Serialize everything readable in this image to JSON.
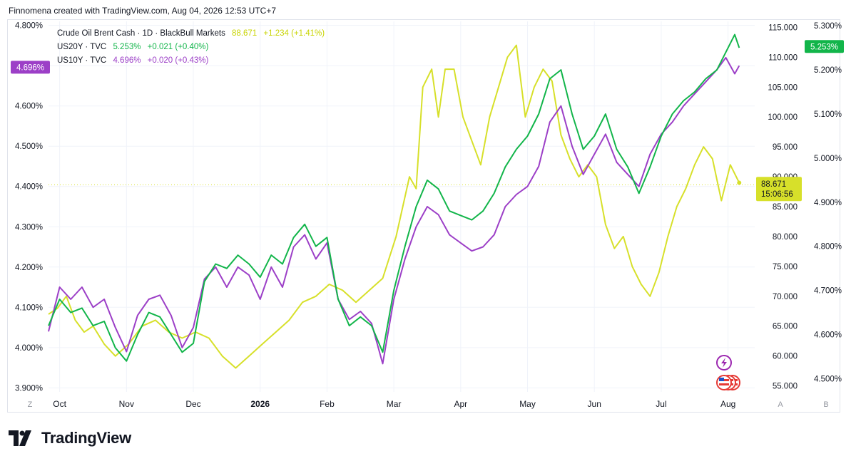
{
  "header": {
    "text": "Finnomena created with TradingView.com, Aug 04, 2026 12:53 UTC+7"
  },
  "brand": {
    "name": "TradingView"
  },
  "colors": {
    "brent": "#d7e02a",
    "us20y": "#12b54a",
    "us10y": "#9c3fc7",
    "grid": "#f0f3fa",
    "axisText": "#131722"
  },
  "legend": [
    {
      "name": "Crude Oil Brent Cash · 1D · BlackBull Markets",
      "value": "88.671",
      "change": "+1.234 (+1.41%)",
      "color": "#c8d400"
    },
    {
      "name": "US20Y · TVC",
      "value": "5.253%",
      "change": "+0.021 (+0.40%)",
      "color": "#12b54a"
    },
    {
      "name": "US10Y · TVC",
      "value": "4.696%",
      "change": "+0.020 (+0.43%)",
      "color": "#9c3fc7"
    }
  ],
  "chart_data": {
    "type": "line",
    "x_labels": [
      "Oct",
      "Nov",
      "Dec",
      "2026",
      "Feb",
      "Mar",
      "Apr",
      "May",
      "Jun",
      "Jul",
      "Aug"
    ],
    "x_labels_pos": [
      0.5,
      3.5,
      6.5,
      9.5,
      12.5,
      15.5,
      18.5,
      21.5,
      24.5,
      27.5,
      30.5
    ],
    "left_axis": {
      "ticks": [
        "4.800%",
        "4.700%",
        "4.600%",
        "4.500%",
        "4.400%",
        "4.300%",
        "4.200%",
        "4.100%",
        "4.000%",
        "3.900%"
      ],
      "values": [
        4.8,
        4.7,
        4.6,
        4.5,
        4.4,
        4.3,
        4.2,
        4.1,
        4.0,
        3.9
      ],
      "range": [
        3.89,
        4.81
      ],
      "badge": "4.696%"
    },
    "mid_axis": {
      "ticks": [
        "115.000",
        "110.000",
        "105.000",
        "100.000",
        "95.000",
        "90.000",
        "85.000",
        "80.000",
        "75.000",
        "70.000",
        "65.000",
        "60.000",
        "55.000"
      ],
      "values": [
        115,
        110,
        105,
        100,
        95,
        90,
        85,
        80,
        75,
        70,
        65,
        60,
        55
      ],
      "range": [
        54,
        116
      ],
      "badge_value": "88.671",
      "badge_time": "15:06:56"
    },
    "right_axis": {
      "ticks": [
        "5.300%",
        "5.200%",
        "5.100%",
        "5.000%",
        "4.900%",
        "4.800%",
        "4.700%",
        "4.600%",
        "4.500%"
      ],
      "values": [
        5.3,
        5.2,
        5.1,
        5.0,
        4.9,
        4.8,
        4.7,
        4.6,
        4.5
      ],
      "range": [
        4.47,
        5.31
      ],
      "badge": "5.253%"
    },
    "x_range": [
      0,
      31.6
    ],
    "series": [
      {
        "name": "Crude Oil Brent Cash",
        "axis": "mid",
        "color": "#d7e02a",
        "x": [
          0,
          0.4,
          0.8,
          1.2,
          1.6,
          2.0,
          2.5,
          3.0,
          3.6,
          4.2,
          4.8,
          5.4,
          6.0,
          6.6,
          7.2,
          7.8,
          8.4,
          9.0,
          9.6,
          10.2,
          10.8,
          11.4,
          12.0,
          12.6,
          13.2,
          13.8,
          14.4,
          15.0,
          15.6,
          16.2,
          16.5,
          16.8,
          17.2,
          17.5,
          17.8,
          18.2,
          18.6,
          19.0,
          19.4,
          19.8,
          20.2,
          20.6,
          21.0,
          21.4,
          21.8,
          22.2,
          22.6,
          23.0,
          23.4,
          23.8,
          24.2,
          24.6,
          25.0,
          25.4,
          25.8,
          26.2,
          26.6,
          27.0,
          27.4,
          27.8,
          28.2,
          28.6,
          29.0,
          29.4,
          29.8,
          30.2,
          30.6,
          31.0
        ],
        "y": [
          67,
          68,
          70,
          66,
          64,
          65,
          62,
          60,
          62,
          65,
          66,
          64,
          63,
          64,
          63,
          60,
          58,
          60,
          62,
          64,
          66,
          69,
          70,
          72,
          71,
          69,
          71,
          73,
          80,
          90,
          88,
          105,
          108,
          100,
          108,
          108,
          100,
          96,
          92,
          100,
          105,
          110,
          112,
          100,
          105,
          108,
          106,
          97,
          93,
          90,
          92,
          90,
          82,
          78,
          80,
          75,
          72,
          70,
          74,
          80,
          85,
          88,
          92,
          95,
          93,
          86,
          92,
          89
        ]
      },
      {
        "name": "US10Y",
        "axis": "left",
        "color": "#9c3fc7",
        "x": [
          0,
          0.5,
          1.0,
          1.5,
          2.0,
          2.5,
          3.0,
          3.5,
          4.0,
          4.5,
          5.0,
          5.5,
          6.0,
          6.5,
          7.0,
          7.5,
          8.0,
          8.5,
          9.0,
          9.5,
          10.0,
          10.5,
          11.0,
          11.5,
          12.0,
          12.5,
          13.0,
          13.5,
          14.0,
          14.5,
          15.0,
          15.5,
          16.0,
          16.5,
          17.0,
          17.5,
          18.0,
          18.5,
          19.0,
          19.5,
          20.0,
          20.5,
          21.0,
          21.5,
          22.0,
          22.5,
          23.0,
          23.5,
          24.0,
          24.5,
          25.0,
          25.5,
          26.0,
          26.5,
          27.0,
          27.5,
          28.0,
          28.5,
          29.0,
          29.5,
          30.0,
          30.4,
          30.8,
          31.0
        ],
        "y": [
          4.04,
          4.15,
          4.12,
          4.15,
          4.1,
          4.12,
          4.05,
          3.99,
          4.08,
          4.12,
          4.13,
          4.08,
          4.0,
          4.05,
          4.17,
          4.2,
          4.15,
          4.2,
          4.18,
          4.12,
          4.2,
          4.15,
          4.25,
          4.28,
          4.22,
          4.26,
          4.12,
          4.07,
          4.09,
          4.06,
          3.96,
          4.12,
          4.22,
          4.3,
          4.35,
          4.33,
          4.28,
          4.26,
          4.24,
          4.25,
          4.28,
          4.35,
          4.38,
          4.4,
          4.45,
          4.56,
          4.6,
          4.5,
          4.43,
          4.48,
          4.53,
          4.46,
          4.43,
          4.4,
          4.48,
          4.53,
          4.56,
          4.6,
          4.63,
          4.66,
          4.69,
          4.72,
          4.68,
          4.7
        ]
      },
      {
        "name": "US20Y",
        "axis": "right",
        "color": "#12b54a",
        "x": [
          0,
          0.5,
          1.0,
          1.5,
          2.0,
          2.5,
          3.0,
          3.5,
          4.0,
          4.5,
          5.0,
          5.5,
          6.0,
          6.5,
          7.0,
          7.5,
          8.0,
          8.5,
          9.0,
          9.5,
          10.0,
          10.5,
          11.0,
          11.5,
          12.0,
          12.5,
          13.0,
          13.5,
          14.0,
          14.5,
          15.0,
          15.5,
          16.0,
          16.5,
          17.0,
          17.5,
          18.0,
          18.5,
          19.0,
          19.5,
          20.0,
          20.5,
          21.0,
          21.5,
          22.0,
          22.5,
          23.0,
          23.5,
          24.0,
          24.5,
          25.0,
          25.5,
          26.0,
          26.5,
          27.0,
          27.5,
          28.0,
          28.5,
          29.0,
          29.5,
          30.0,
          30.4,
          30.8,
          31.0
        ],
        "y": [
          4.62,
          4.68,
          4.65,
          4.66,
          4.62,
          4.63,
          4.57,
          4.54,
          4.6,
          4.65,
          4.64,
          4.6,
          4.56,
          4.58,
          4.72,
          4.76,
          4.75,
          4.78,
          4.76,
          4.73,
          4.78,
          4.76,
          4.82,
          4.85,
          4.8,
          4.82,
          4.68,
          4.62,
          4.64,
          4.62,
          4.56,
          4.7,
          4.8,
          4.89,
          4.95,
          4.93,
          4.88,
          4.87,
          4.86,
          4.88,
          4.92,
          4.98,
          5.02,
          5.05,
          5.1,
          5.18,
          5.2,
          5.1,
          5.02,
          5.05,
          5.1,
          5.02,
          4.98,
          4.92,
          4.98,
          5.05,
          5.1,
          5.13,
          5.15,
          5.18,
          5.2,
          5.24,
          5.28,
          5.25
        ]
      }
    ],
    "bottom_corner_labels": [
      "Z",
      "A",
      "B"
    ]
  }
}
